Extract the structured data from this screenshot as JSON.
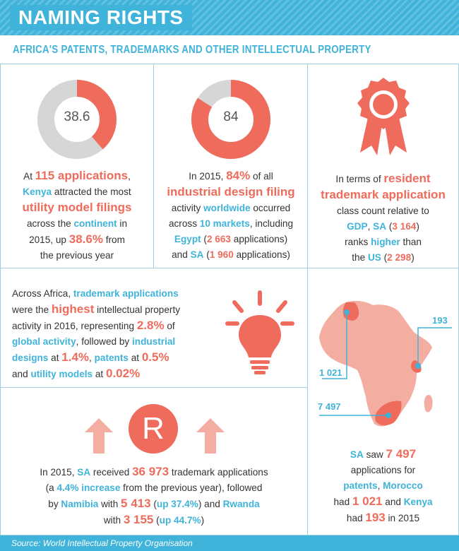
{
  "header": {
    "title": "NAMING RIGHTS"
  },
  "subtitle": "AFRICA'S PATENTS, TRADEMARKS AND OTHER INTELLECTUAL PROPERTY",
  "colors": {
    "accent_blue": "#3fb3d9",
    "accent_red": "#ef6b5c",
    "grey_ring": "#d6d6d6",
    "map_fill": "#f4ada1"
  },
  "panel1": {
    "donut_value": "38.6",
    "donut_fraction": 0.386,
    "t1": "At ",
    "t2": "115 applications",
    "t3": ",",
    "t4": "Kenya",
    "t5": " attracted the most",
    "t6": "utility model filings",
    "t7": "across the ",
    "t8": "continent",
    "t9": " in",
    "t10": "2015, up ",
    "t11": "38.6%",
    "t12": " from",
    "t13": "the previous year"
  },
  "panel2": {
    "donut_value": "84",
    "donut_fraction": 0.84,
    "t1": "In 2015, ",
    "t2": "84%",
    "t3": " of all",
    "t4": "industrial design filing",
    "t5": "activity ",
    "t6": "worldwide",
    "t7": " occurred",
    "t8": "across ",
    "t9": "10 markets",
    "t10": ", including",
    "t11": "Egypt",
    "t12": " (",
    "t13": "2 663",
    "t14": " applications)",
    "t15": "and ",
    "t16": "SA",
    "t17": " (",
    "t18": "1 960",
    "t19": " applications)"
  },
  "panel3": {
    "icon": "award-ribbon-icon",
    "t1": "In terms of ",
    "t2": "resident",
    "t3": "trademark application",
    "t4": "class count relative to",
    "t5": "GDP",
    "t6": ", ",
    "t7": "SA",
    "t8": " (",
    "t9": "3 164",
    "t10": ")",
    "t11": "ranks ",
    "t12": "higher",
    "t13": " than",
    "t14": "the ",
    "t15": "US",
    "t16": " (",
    "t17": "2 298",
    "t18": ")"
  },
  "panel4": {
    "icon": "lightbulb-icon",
    "t1": "Across Africa, ",
    "t2": "trademark applications",
    "t3": "were the ",
    "t4": "highest",
    "t5": " intellectual property",
    "t6": "activity in 2016, representing ",
    "t7": "2.8%",
    "t8": " of",
    "t9": "global activity",
    "t10": ", followed by ",
    "t11": "industrial",
    "t12": "designs",
    "t13": " at ",
    "t14": "1.4%",
    "t15": ", ",
    "t16": "patents",
    "t17": " at ",
    "t18": "0.5%",
    "t19": "and ",
    "t20": "utility models",
    "t21": " at ",
    "t22": "0.02%"
  },
  "panel5": {
    "icon": "registered-trademark-icon",
    "symbol": "R",
    "t1": "In 2015, ",
    "t2": "SA",
    "t3": " received ",
    "t4": "36 973",
    "t5": " trademark applications",
    "t6": "(a ",
    "t7": "4.4% increase",
    "t8": " from the previous year), followed",
    "t9": "by ",
    "t10": "Namibia",
    "t11": " with ",
    "t12": "5 413",
    "t13": " (",
    "t14": "up 37.4%",
    "t15": ") and ",
    "t16": "Rwanda",
    "t17": "with ",
    "t18": "3 155",
    "t19": " (",
    "t20": "up 44.7%",
    "t21": ")"
  },
  "panel6": {
    "icon": "africa-map-icon",
    "label_kenya": "193",
    "label_morocco": "1 021",
    "label_sa": "7 497",
    "t1": "SA",
    "t2": " saw ",
    "t3": "7 497",
    "t4": "applications for",
    "t5": "patents",
    "t6": ", ",
    "t7": "Morocco",
    "t8": "had ",
    "t9": "1 021",
    "t10": " and ",
    "t11": "Kenya",
    "t12": "had ",
    "t13": "193",
    "t14": " in 2015"
  },
  "footer": {
    "source": "Source: World Intellectual Property Organisation"
  }
}
